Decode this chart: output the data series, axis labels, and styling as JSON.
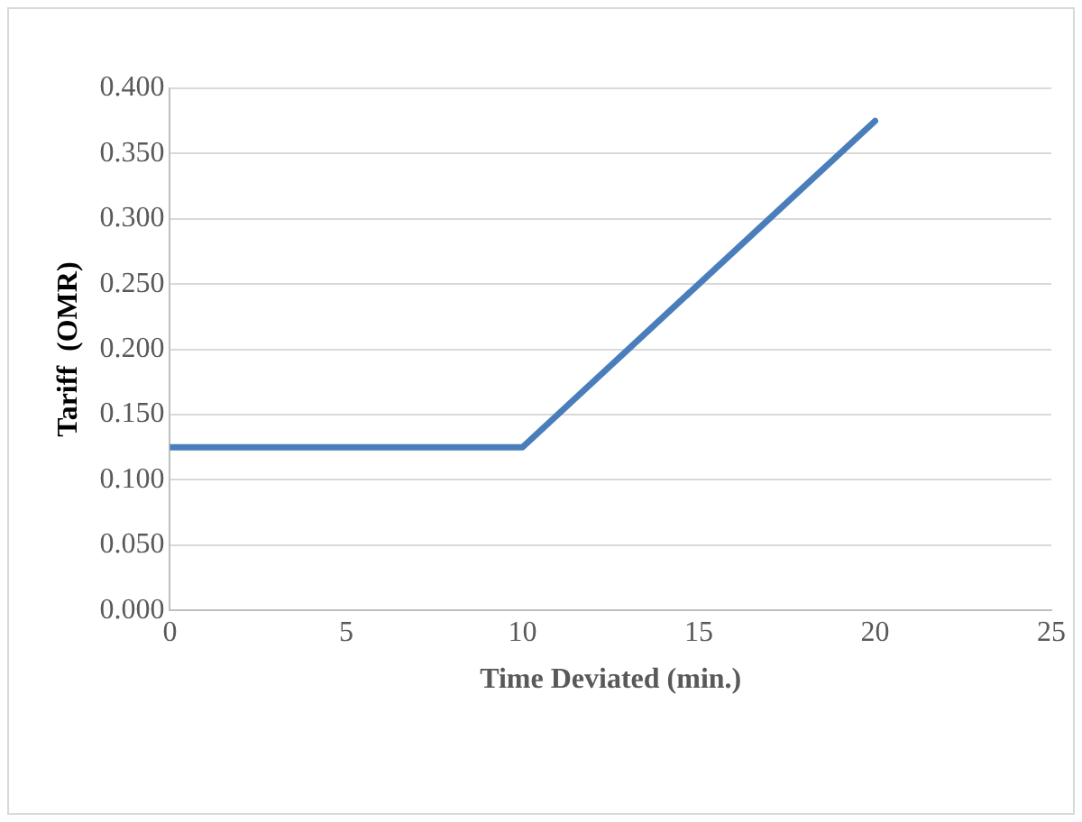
{
  "chart_data": {
    "type": "line",
    "xlabel": "Time Deviated (min.)",
    "ylabel": "Tariff  (OMR)",
    "x": [
      0,
      10,
      20
    ],
    "series": [
      {
        "color": "#4a7ebb",
        "values": [
          0.125,
          0.125,
          0.375
        ]
      }
    ],
    "xlim": [
      0,
      25
    ],
    "xticks": [
      0,
      5,
      10,
      15,
      20,
      25
    ],
    "ylim": [
      0,
      0.4
    ],
    "yticks": [
      {
        "value": 0,
        "label": "0.000"
      },
      {
        "value": 0.05,
        "label": "0.050"
      },
      {
        "value": 0.1,
        "label": "0.100"
      },
      {
        "value": 0.15,
        "label": "0.150"
      },
      {
        "value": 0.2,
        "label": "0.200"
      },
      {
        "value": 0.25,
        "label": "0.250"
      },
      {
        "value": 0.3,
        "label": "0.300"
      },
      {
        "value": 0.35,
        "label": "0.350"
      },
      {
        "value": 0.4,
        "label": "0.400"
      }
    ],
    "grid": "y",
    "legend": false,
    "marker": "none",
    "line_style": "solid"
  }
}
